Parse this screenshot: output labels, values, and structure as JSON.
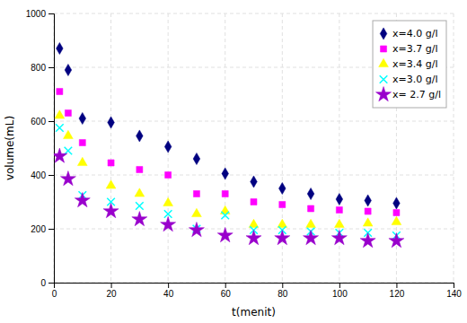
{
  "chart_data": {
    "type": "scatter",
    "xlabel": "t(menit)",
    "ylabel": "volume(mL)",
    "x": [
      2,
      5,
      10,
      20,
      30,
      40,
      50,
      60,
      70,
      80,
      90,
      100,
      110,
      120
    ],
    "series": [
      {
        "name": "x=4.0 g/l",
        "color": "#000080",
        "marker": "diamond",
        "values": [
          870,
          790,
          610,
          595,
          545,
          505,
          460,
          405,
          375,
          350,
          330,
          310,
          305,
          295
        ]
      },
      {
        "name": "x=3.7 g/l",
        "color": "#ff00ff",
        "marker": "square",
        "values": [
          710,
          630,
          520,
          445,
          420,
          400,
          330,
          330,
          300,
          290,
          275,
          270,
          265,
          260
        ]
      },
      {
        "name": "x=3.4 g/l",
        "color": "#ffff00",
        "marker": "triangle",
        "values": [
          620,
          545,
          445,
          360,
          330,
          295,
          255,
          265,
          215,
          215,
          215,
          215,
          220,
          225
        ]
      },
      {
        "name": "x=3.0 g/l",
        "color": "#00ffff",
        "marker": "x",
        "values": [
          575,
          490,
          325,
          300,
          285,
          255,
          200,
          250,
          195,
          195,
          190,
          185,
          185,
          175
        ]
      },
      {
        "name": "x= 2.7 g/l",
        "color": "#9900cc",
        "marker": "star",
        "values": [
          470,
          385,
          305,
          265,
          235,
          215,
          195,
          175,
          165,
          165,
          165,
          165,
          155,
          155
        ]
      }
    ],
    "xlim": [
      0,
      140
    ],
    "ylim": [
      0,
      1000
    ],
    "xticks": [
      0,
      20,
      40,
      60,
      80,
      100,
      120,
      140
    ],
    "yticks": [
      0,
      200,
      400,
      600,
      800,
      1000
    ],
    "grid": true,
    "legend": "top-right"
  }
}
